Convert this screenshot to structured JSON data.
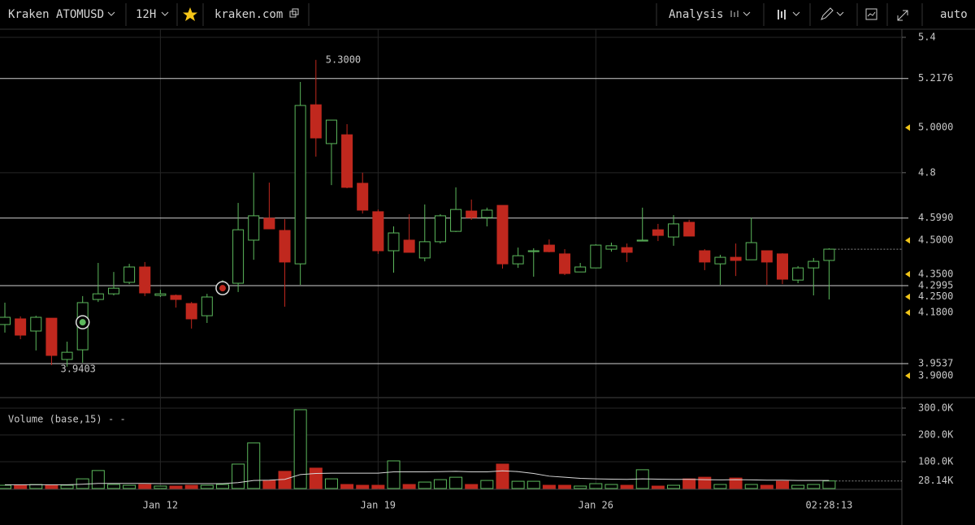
{
  "toolbar": {
    "symbol": "Kraken ATOMUSD",
    "interval": "12H",
    "source": "kraken.com",
    "analysis": "Analysis",
    "scale": "auto"
  },
  "chart_data": [
    {
      "type": "candlestick",
      "categories": [
        null,
        null,
        null,
        null,
        null,
        null,
        null,
        null,
        null,
        null,
        "Jan 12",
        null,
        null,
        null,
        null,
        null,
        null,
        null,
        null,
        null,
        null,
        null,
        null,
        null,
        "Jan 19",
        null,
        null,
        null,
        null,
        null,
        null,
        null,
        null,
        null,
        null,
        null,
        null,
        null,
        "Jan 26",
        null,
        null,
        null,
        null,
        null,
        null,
        null,
        null,
        null,
        null,
        null,
        null,
        null,
        null,
        null
      ],
      "open": [
        4.127,
        4.152,
        4.098,
        4.155,
        3.972,
        4.015,
        4.238,
        4.263,
        4.314,
        4.382,
        4.256,
        4.256,
        4.22,
        4.166,
        4.296,
        4.31,
        4.501,
        4.598,
        4.544,
        4.396,
        5.101,
        4.929,
        4.968,
        4.753,
        4.627,
        4.454,
        4.501,
        4.422,
        4.494,
        4.54,
        4.63,
        4.601,
        4.655,
        4.396,
        4.45,
        4.479,
        4.44,
        4.36,
        4.378,
        4.461,
        4.468,
        4.497,
        4.547,
        4.515,
        4.58,
        4.454,
        4.396,
        4.425,
        4.414,
        4.454,
        4.44,
        4.324,
        4.378,
        4.411
      ],
      "high": [
        4.224,
        4.163,
        4.166,
        4.155,
        4.051,
        4.253,
        4.4,
        4.36,
        4.396,
        4.404,
        4.281,
        4.26,
        4.227,
        4.263,
        4.324,
        4.666,
        4.8,
        4.756,
        4.594,
        5.202,
        5.3,
        5.033,
        5.015,
        4.8,
        4.637,
        4.562,
        4.616,
        4.659,
        4.616,
        4.735,
        4.681,
        4.645,
        4.655,
        4.468,
        4.465,
        4.504,
        4.461,
        4.4,
        4.483,
        4.49,
        4.486,
        4.645,
        4.573,
        4.612,
        4.591,
        4.461,
        4.436,
        4.486,
        4.601,
        4.454,
        4.443,
        4.386,
        4.422,
        4.465
      ],
      "low": [
        4.091,
        4.062,
        4.012,
        3.947,
        3.9403,
        3.958,
        4.227,
        4.256,
        4.306,
        4.253,
        4.249,
        4.202,
        4.109,
        4.134,
        4.271,
        4.271,
        4.414,
        4.551,
        4.206,
        4.303,
        4.871,
        4.745,
        4.731,
        4.619,
        4.44,
        4.357,
        4.447,
        4.407,
        4.486,
        4.537,
        4.591,
        4.562,
        4.375,
        4.378,
        4.339,
        4.447,
        4.346,
        4.36,
        4.378,
        4.45,
        4.404,
        4.497,
        4.497,
        4.476,
        4.519,
        4.368,
        4.303,
        4.342,
        4.414,
        4.303,
        4.306,
        4.31,
        4.256,
        4.238
      ],
      "close": [
        4.159,
        4.08,
        4.159,
        3.99,
        4.004,
        4.224,
        4.263,
        4.288,
        4.382,
        4.267,
        4.263,
        4.238,
        4.152,
        4.249,
        4.303,
        4.547,
        4.609,
        4.551,
        4.404,
        5.098,
        4.954,
        5.033,
        4.735,
        4.634,
        4.454,
        4.533,
        4.447,
        4.494,
        4.609,
        4.637,
        4.601,
        4.634,
        4.396,
        4.432,
        4.454,
        4.45,
        4.353,
        4.382,
        4.479,
        4.476,
        4.447,
        4.501,
        4.522,
        4.573,
        4.519,
        4.404,
        4.425,
        4.411,
        4.49,
        4.404,
        4.328,
        4.378,
        4.407,
        4.461
      ],
      "up_color": "#5cb85c",
      "down_color": "#c0281e",
      "ylim": [
        3.803,
        5.436
      ],
      "yticks": [
        5.4,
        4.8
      ],
      "grid": true,
      "levels": [
        {
          "value": 5.2176,
          "label": "5.2176"
        },
        {
          "value": 4.599,
          "label": "4.5990"
        },
        {
          "value": 4.2995,
          "label": "4.2995"
        },
        {
          "value": 3.9537,
          "label": "3.9537"
        }
      ],
      "alerts": [
        {
          "value": 5.0,
          "label": "5.0000"
        },
        {
          "value": 4.5,
          "label": "4.5000"
        },
        {
          "value": 4.35,
          "label": "4.3500"
        },
        {
          "value": 4.25,
          "label": "4.2500"
        },
        {
          "value": 4.18,
          "label": "4.1800"
        },
        {
          "value": 3.9,
          "label": "3.9000"
        }
      ],
      "alert_color": "#f0c419",
      "extremes": [
        {
          "candle": 20,
          "value": 5.3,
          "label": "5.3000"
        },
        {
          "candle": 4,
          "value": 3.9403,
          "label": "3.9403"
        }
      ],
      "trades": [
        {
          "candle": 5,
          "value": 4.137,
          "color": "#5cb85c"
        },
        {
          "candle": 14,
          "value": 4.288,
          "color": "#c0281e"
        }
      ],
      "countdown": "02:28:13"
    },
    {
      "type": "bar",
      "title": "Volume (base,15)",
      "status": "- -",
      "values": [
        12000,
        12000,
        15000,
        12000,
        12000,
        36000,
        67000,
        15000,
        12000,
        15000,
        9000,
        9000,
        12000,
        12000,
        15000,
        91000,
        170000,
        30000,
        64000,
        294000,
        76000,
        36000,
        15000,
        12000,
        12000,
        103000,
        15000,
        24000,
        33000,
        42000,
        15000,
        30000,
        91000,
        27000,
        27000,
        12000,
        12000,
        9000,
        18000,
        15000,
        12000,
        70000,
        9000,
        12000,
        36000,
        42000,
        15000,
        39000,
        15000,
        12000,
        27000,
        12000,
        15000,
        28140
      ],
      "ma": [
        14000,
        14000,
        14000,
        14000,
        14000,
        16000,
        19000,
        19000,
        19000,
        19000,
        18000,
        18000,
        18000,
        18000,
        18000,
        22000,
        30000,
        31000,
        34000,
        52000,
        56000,
        57000,
        57000,
        57000,
        57000,
        62000,
        62000,
        62000,
        63000,
        64000,
        62000,
        62000,
        66000,
        63000,
        56000,
        46000,
        42000,
        38000,
        36000,
        35000,
        34000,
        36000,
        35000,
        34000,
        34000,
        33000,
        32000,
        33000,
        32000,
        31000,
        31000,
        30000,
        30000,
        30000
      ],
      "ma_color": "#d8d8d8",
      "ylim": [
        0,
        318000
      ],
      "yticks": [
        {
          "value": 300000,
          "label": "300.0K"
        },
        {
          "value": 200000,
          "label": "200.0K"
        },
        {
          "value": 100000,
          "label": "100.0K"
        }
      ],
      "last": {
        "value": 28140,
        "label": "28.14K"
      }
    }
  ]
}
